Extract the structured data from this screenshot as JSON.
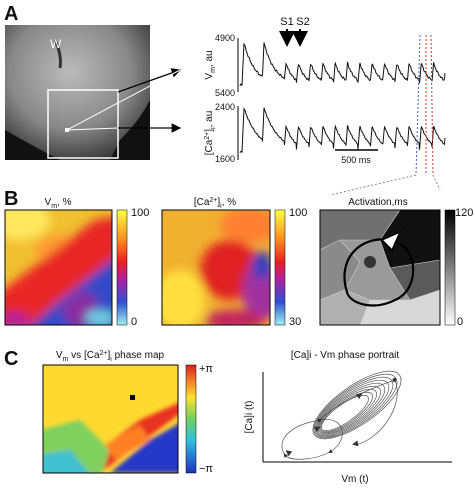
{
  "panel_a": {
    "label": "A",
    "image_label": "W",
    "markers": [
      "S1",
      "S2"
    ],
    "vm_axis": {
      "label": [
        "V",
        "m",
        ", au"
      ],
      "top": "4900",
      "bottom": "5400"
    },
    "ca_axis": {
      "label": [
        "[Ca",
        "2+",
        "]",
        "i",
        ", au"
      ],
      "top": "2400",
      "bottom": "1600"
    },
    "scale_bar": "500 ms"
  },
  "panel_b": {
    "label": "B",
    "maps": [
      {
        "title": [
          "V",
          "m",
          ", %"
        ],
        "max": "100",
        "min": "0"
      },
      {
        "title": [
          "[Ca",
          "2+",
          "]",
          "i",
          ", %"
        ],
        "max": "100",
        "min": "30"
      },
      {
        "title": "Activation,ms",
        "max": "120",
        "min": "0"
      }
    ]
  },
  "panel_c": {
    "label": "C",
    "map_title": [
      "V",
      "m",
      " vs [Ca",
      "2+",
      "]",
      "i",
      " phase map"
    ],
    "max": "+π",
    "min": "−π",
    "portrait_title": "[Ca]i - Vm phase portrait",
    "x_label": "Vm (t)",
    "y_label": "[Ca]i (t)"
  }
}
